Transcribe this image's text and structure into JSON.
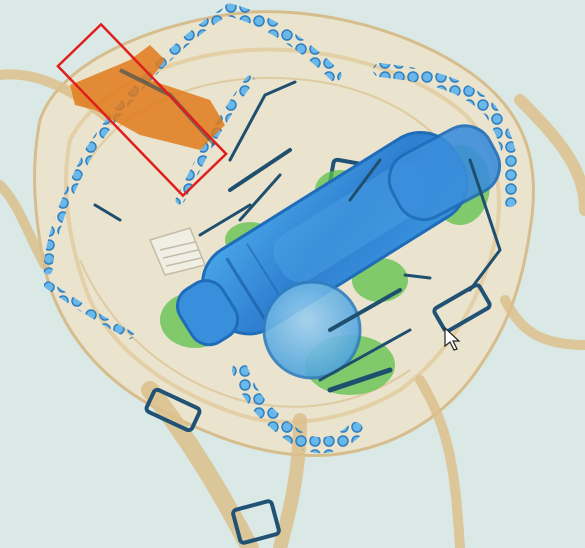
{
  "scan": {
    "background_color": "#dbe9e6",
    "palette": {
      "organic_light": "#e2c79a",
      "organic_strap": "#d9bc84",
      "organic_dense": "#e07a1a",
      "inorganic_blue": "#2f86d6",
      "inorganic_blue_light": "#67b3ea",
      "mixed_green": "#5ec24a",
      "metal_dark": "#1f4f6e",
      "highlight_box": "#e01e1e"
    },
    "cursor": "arrow-cursor-icon"
  }
}
